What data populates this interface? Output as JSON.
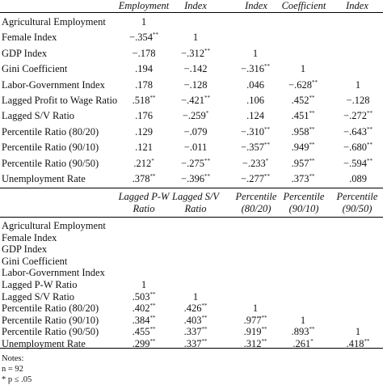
{
  "table1": {
    "headers": [
      "Employment",
      "Index",
      "Index",
      "Coefficient",
      "Index"
    ],
    "rows": [
      {
        "label": "Agricultural Employment",
        "cells": [
          [
            "1",
            ""
          ],
          [
            "",
            ""
          ],
          [
            "",
            ""
          ],
          [
            "",
            ""
          ],
          [
            "",
            ""
          ]
        ]
      },
      {
        "label": "Female Index",
        "cells": [
          [
            "−.354",
            "**"
          ],
          [
            "1",
            ""
          ],
          [
            "",
            ""
          ],
          [
            "",
            ""
          ],
          [
            "",
            ""
          ]
        ]
      },
      {
        "label": "GDP Index",
        "cells": [
          [
            "−.178",
            ""
          ],
          [
            "−.312",
            "**"
          ],
          [
            "1",
            ""
          ],
          [
            "",
            ""
          ],
          [
            "",
            ""
          ]
        ]
      },
      {
        "label": "Gini Coefficient",
        "cells": [
          [
            ".194",
            ""
          ],
          [
            "−.142",
            ""
          ],
          [
            "−.316",
            "**"
          ],
          [
            "1",
            ""
          ],
          [
            "",
            ""
          ]
        ]
      },
      {
        "label": "Labor-Government Index",
        "cells": [
          [
            ".178",
            ""
          ],
          [
            "−.128",
            ""
          ],
          [
            ".046",
            ""
          ],
          [
            "−.628",
            "**"
          ],
          [
            "1",
            ""
          ]
        ]
      },
      {
        "label": "Lagged Profit to Wage Ratio",
        "cells": [
          [
            ".518",
            "**"
          ],
          [
            "−.421",
            "**"
          ],
          [
            ".106",
            ""
          ],
          [
            ".452",
            "**"
          ],
          [
            "−.128",
            ""
          ]
        ]
      },
      {
        "label": "Lagged S/V Ratio",
        "cells": [
          [
            ".176",
            ""
          ],
          [
            "−.259",
            "*"
          ],
          [
            ".124",
            ""
          ],
          [
            ".451",
            "**"
          ],
          [
            "−.272",
            "**"
          ]
        ]
      },
      {
        "label": "Percentile Ratio (80/20)",
        "cells": [
          [
            ".129",
            ""
          ],
          [
            "−.079",
            ""
          ],
          [
            "−.310",
            "**"
          ],
          [
            ".958",
            "**"
          ],
          [
            "−.643",
            "**"
          ]
        ]
      },
      {
        "label": "Percentile Ratio (90/10)",
        "cells": [
          [
            ".121",
            ""
          ],
          [
            "−.011",
            ""
          ],
          [
            "−.357",
            "**"
          ],
          [
            ".949",
            "**"
          ],
          [
            "−.680",
            "**"
          ]
        ]
      },
      {
        "label": "Percentile Ratio (90/50)",
        "cells": [
          [
            ".212",
            "*"
          ],
          [
            "−.275",
            "**"
          ],
          [
            "−.233",
            "*"
          ],
          [
            ".957",
            "**"
          ],
          [
            "−.594",
            "**"
          ]
        ]
      },
      {
        "label": "Unemployment Rate",
        "cells": [
          [
            ".378",
            "**"
          ],
          [
            "−.396",
            "**"
          ],
          [
            "−.277",
            "**"
          ],
          [
            ".373",
            "**"
          ],
          [
            ".089",
            ""
          ]
        ]
      }
    ]
  },
  "table2": {
    "headers": [
      [
        "Lagged P-W",
        "Ratio"
      ],
      [
        "Lagged S/V",
        "Ratio"
      ],
      [
        "Percentile",
        "(80/20)"
      ],
      [
        "Percentile",
        "(90/10)"
      ],
      [
        "Percentile",
        "(90/50)"
      ]
    ],
    "rows": [
      {
        "label": "Agricultural Employment",
        "cells": [
          [
            "",
            ""
          ],
          [
            "",
            ""
          ],
          [
            "",
            ""
          ],
          [
            "",
            ""
          ],
          [
            "",
            ""
          ]
        ]
      },
      {
        "label": "Female Index",
        "cells": [
          [
            "",
            ""
          ],
          [
            "",
            ""
          ],
          [
            "",
            ""
          ],
          [
            "",
            ""
          ],
          [
            "",
            ""
          ]
        ]
      },
      {
        "label": "GDP Index",
        "cells": [
          [
            "",
            ""
          ],
          [
            "",
            ""
          ],
          [
            "",
            ""
          ],
          [
            "",
            ""
          ],
          [
            "",
            ""
          ]
        ]
      },
      {
        "label": "Gini Coefficient",
        "cells": [
          [
            "",
            ""
          ],
          [
            "",
            ""
          ],
          [
            "",
            ""
          ],
          [
            "",
            ""
          ],
          [
            "",
            ""
          ]
        ]
      },
      {
        "label": "Labor-Government Index",
        "cells": [
          [
            "",
            ""
          ],
          [
            "",
            ""
          ],
          [
            "",
            ""
          ],
          [
            "",
            ""
          ],
          [
            "",
            ""
          ]
        ]
      },
      {
        "label": "Lagged P-W Ratio",
        "cells": [
          [
            "1",
            ""
          ],
          [
            "",
            ""
          ],
          [
            "",
            ""
          ],
          [
            "",
            ""
          ],
          [
            "",
            ""
          ]
        ]
      },
      {
        "label": "Lagged S/V Ratio",
        "cells": [
          [
            ".503",
            "**"
          ],
          [
            "1",
            ""
          ],
          [
            "",
            ""
          ],
          [
            "",
            ""
          ],
          [
            "",
            ""
          ]
        ]
      },
      {
        "label": "Percentile Ratio (80/20)",
        "cells": [
          [
            ".402",
            "**"
          ],
          [
            ".426",
            "**"
          ],
          [
            "1",
            ""
          ],
          [
            "",
            ""
          ],
          [
            "",
            ""
          ]
        ]
      },
      {
        "label": "Percentile Ratio (90/10)",
        "cells": [
          [
            ".384",
            "**"
          ],
          [
            ".403",
            "**"
          ],
          [
            ".977",
            "**"
          ],
          [
            "1",
            ""
          ],
          [
            "",
            ""
          ]
        ]
      },
      {
        "label": "Percentile Ratio (90/50)",
        "cells": [
          [
            ".455",
            "**"
          ],
          [
            ".337",
            "**"
          ],
          [
            ".919",
            "**"
          ],
          [
            ".893",
            "**"
          ],
          [
            "1",
            ""
          ]
        ]
      },
      {
        "label": "Unemployment Rate",
        "cells": [
          [
            ".299",
            "**"
          ],
          [
            ".337",
            "**"
          ],
          [
            ".312",
            "**"
          ],
          [
            ".261",
            "*"
          ],
          [
            ".418",
            "**"
          ]
        ]
      }
    ]
  },
  "notes": {
    "heading": "Notes:",
    "lines": [
      "n = 92",
      [
        "* p ≤ .05",
        ""
      ]
    ]
  }
}
